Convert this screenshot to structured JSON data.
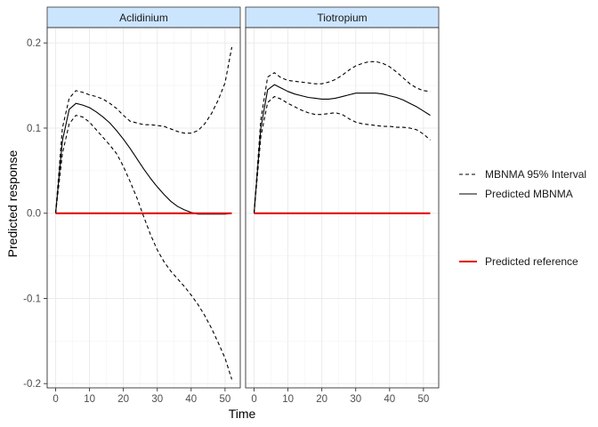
{
  "chart_data": {
    "type": "line",
    "title": "",
    "xlabel": "Time",
    "ylabel": "Predicted response",
    "xlim": [
      -2.5,
      54.5
    ],
    "ylim": [
      -0.205,
      0.218
    ],
    "x_ticks": [
      0,
      10,
      20,
      30,
      40,
      50
    ],
    "x_tick_labels": [
      "0",
      "10",
      "20",
      "30",
      "40",
      "50"
    ],
    "y_ticks": [
      -0.2,
      -0.1,
      0.0,
      0.1,
      0.2
    ],
    "y_tick_labels": [
      "-0.2",
      "-0.1",
      "0.0",
      "0.1",
      "0.2"
    ],
    "grid": true,
    "legend": {
      "position": "right",
      "entries": [
        {
          "label": "MBNMA 95% Interval",
          "style": "dashed",
          "color": "#000000"
        },
        {
          "label": "Predicted MBNMA",
          "style": "solid",
          "color": "#000000"
        },
        {
          "label": "Predicted reference",
          "style": "solid",
          "color": "#e00000"
        }
      ]
    },
    "colors": {
      "strip_fill": "#cce5ff",
      "reference_line": "#e00000",
      "mbnma_line": "#000000"
    },
    "panels": [
      {
        "name": "Aclidinium",
        "x": [
          0,
          2,
          4,
          6,
          8,
          10,
          12,
          14,
          16,
          18,
          20,
          22,
          24,
          26,
          28,
          30,
          32,
          34,
          36,
          38,
          40,
          42,
          44,
          46,
          48,
          50,
          52
        ],
        "series": [
          {
            "name": "Predicted MBNMA",
            "values": [
              0,
              0.085,
              0.122,
              0.129,
              0.127,
              0.124,
              0.119,
              0.113,
              0.106,
              0.097,
              0.087,
              0.076,
              0.064,
              0.052,
              0.041,
              0.031,
              0.022,
              0.014,
              0.008,
              0.004,
              0.001,
              -0.001,
              -0.001,
              -0.001,
              -0.001,
              -0.001,
              0.0
            ]
          },
          {
            "name": "MBNMA 95% Interval upper",
            "values": [
              0,
              0.1,
              0.135,
              0.144,
              0.142,
              0.139,
              0.137,
              0.134,
              0.129,
              0.123,
              0.115,
              0.108,
              0.106,
              0.104,
              0.104,
              0.103,
              0.102,
              0.099,
              0.096,
              0.094,
              0.094,
              0.097,
              0.105,
              0.117,
              0.133,
              0.153,
              0.195
            ]
          },
          {
            "name": "MBNMA 95% Interval lower",
            "values": [
              0,
              0.07,
              0.105,
              0.115,
              0.113,
              0.107,
              0.098,
              0.089,
              0.08,
              0.07,
              0.055,
              0.037,
              0.018,
              -0.004,
              -0.025,
              -0.043,
              -0.057,
              -0.068,
              -0.077,
              -0.086,
              -0.096,
              -0.107,
              -0.12,
              -0.135,
              -0.152,
              -0.17,
              -0.195
            ]
          },
          {
            "name": "Predicted reference",
            "values": [
              0,
              0,
              0,
              0,
              0,
              0,
              0,
              0,
              0,
              0,
              0,
              0,
              0,
              0,
              0,
              0,
              0,
              0,
              0,
              0,
              0,
              0,
              0,
              0,
              0,
              0,
              0
            ]
          }
        ]
      },
      {
        "name": "Tiotropium",
        "x": [
          0,
          2,
          4,
          6,
          8,
          10,
          12,
          14,
          16,
          18,
          20,
          22,
          24,
          26,
          28,
          30,
          32,
          34,
          36,
          38,
          40,
          42,
          44,
          46,
          48,
          50,
          52
        ],
        "series": [
          {
            "name": "Predicted MBNMA",
            "values": [
              0,
              0.1,
              0.145,
              0.151,
              0.147,
              0.143,
              0.14,
              0.138,
              0.136,
              0.135,
              0.134,
              0.134,
              0.135,
              0.137,
              0.139,
              0.141,
              0.141,
              0.141,
              0.141,
              0.14,
              0.138,
              0.136,
              0.133,
              0.129,
              0.125,
              0.12,
              0.115
            ]
          },
          {
            "name": "MBNMA 95% Interval upper",
            "values": [
              0,
              0.11,
              0.16,
              0.165,
              0.159,
              0.156,
              0.155,
              0.154,
              0.153,
              0.152,
              0.152,
              0.154,
              0.157,
              0.162,
              0.168,
              0.173,
              0.176,
              0.178,
              0.178,
              0.176,
              0.172,
              0.166,
              0.159,
              0.152,
              0.147,
              0.144,
              0.143
            ]
          },
          {
            "name": "MBNMA 95% Interval lower",
            "values": [
              0,
              0.09,
              0.13,
              0.137,
              0.134,
              0.129,
              0.125,
              0.121,
              0.118,
              0.116,
              0.116,
              0.117,
              0.118,
              0.116,
              0.111,
              0.107,
              0.105,
              0.104,
              0.103,
              0.102,
              0.102,
              0.101,
              0.101,
              0.1,
              0.098,
              0.093,
              0.086
            ]
          },
          {
            "name": "Predicted reference",
            "values": [
              0,
              0,
              0,
              0,
              0,
              0,
              0,
              0,
              0,
              0,
              0,
              0,
              0,
              0,
              0,
              0,
              0,
              0,
              0,
              0,
              0,
              0,
              0,
              0,
              0,
              0,
              0
            ]
          }
        ]
      }
    ]
  }
}
